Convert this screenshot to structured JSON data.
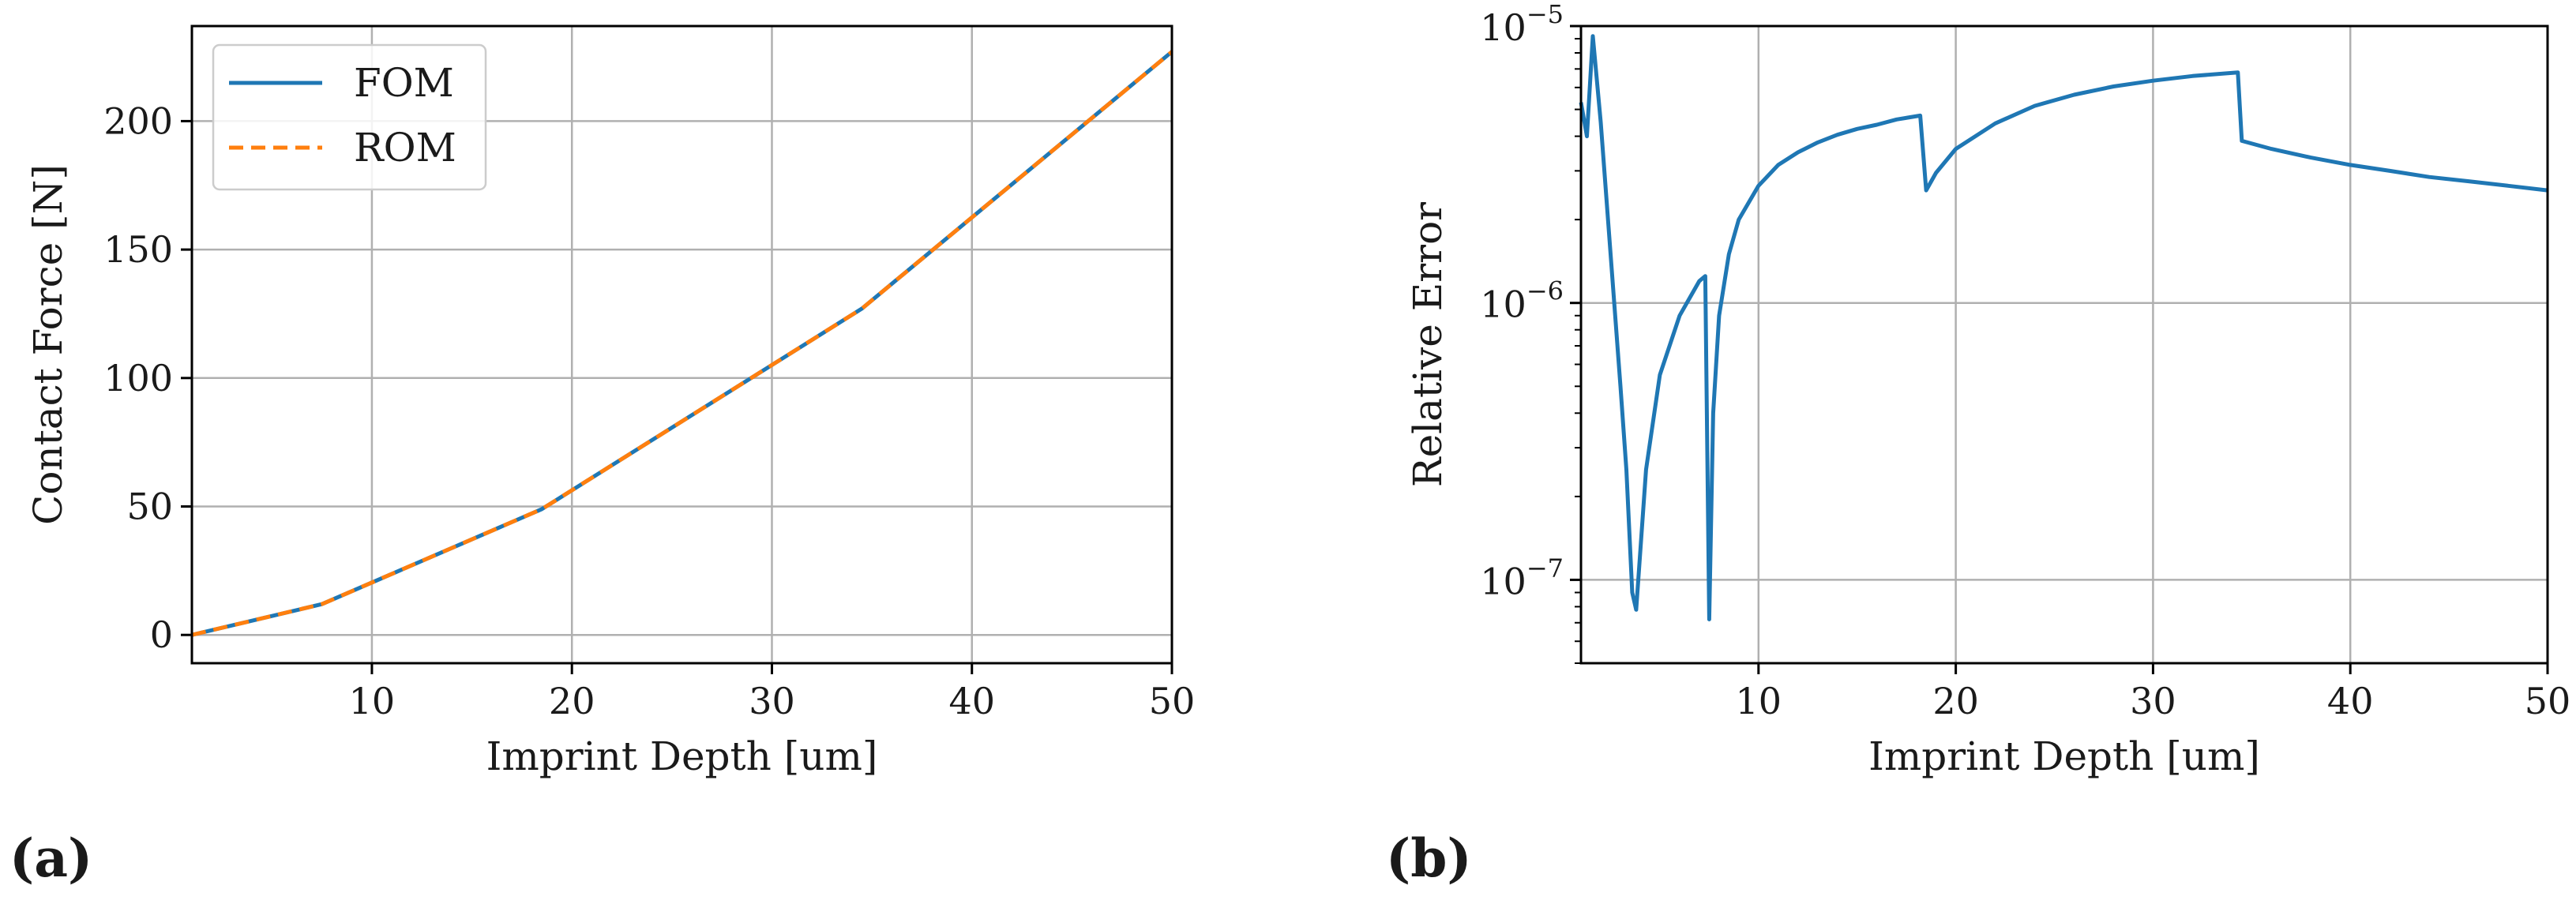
{
  "chart_data": [
    {
      "type": "line",
      "panel_label": "(a)",
      "title": "",
      "xlabel": "Imprint Depth [um]",
      "ylabel": "Contact Force [N]",
      "xlim": [
        1,
        50
      ],
      "ylim": [
        -11,
        237
      ],
      "xticks": [
        10,
        20,
        30,
        40,
        50
      ],
      "yticks": [
        0,
        50,
        100,
        150,
        200
      ],
      "grid": true,
      "legend_position": "top-left",
      "series": [
        {
          "name": "FOM",
          "color": "#1f77b4",
          "style": "solid",
          "x": [
            1,
            7.5,
            18.5,
            34.5,
            50
          ],
          "y": [
            0,
            12,
            49,
            127,
            227
          ]
        },
        {
          "name": "ROM",
          "color": "#ff7f0e",
          "style": "dashed",
          "x": [
            1,
            7.5,
            18.5,
            34.5,
            50
          ],
          "y": [
            0,
            12,
            49,
            127,
            227
          ]
        }
      ]
    },
    {
      "type": "line",
      "panel_label": "(b)",
      "title": "",
      "xlabel": "Imprint Depth [um]",
      "ylabel": "Relative Error",
      "yscale": "log",
      "xlim": [
        1,
        50
      ],
      "ylim": [
        5e-08,
        1e-05
      ],
      "xticks": [
        10,
        20,
        30,
        40,
        50
      ],
      "yticks": [
        1e-07,
        1e-06,
        1e-05
      ],
      "ytick_labels": [
        {
          "base": "10",
          "exp": "−7"
        },
        {
          "base": "10",
          "exp": "−6"
        },
        {
          "base": "10",
          "exp": "−5"
        }
      ],
      "grid": true,
      "series": [
        {
          "name": "Relative Error",
          "color": "#1f77b4",
          "x": [
            1.0,
            1.3,
            1.6,
            2.0,
            2.5,
            3.0,
            3.3,
            3.6,
            3.8,
            4.3,
            5.0,
            6.0,
            7.0,
            7.3,
            7.5,
            7.7,
            8.0,
            8.5,
            9.0,
            10,
            11,
            12,
            13,
            14,
            15,
            16,
            17,
            18.2,
            18.5,
            19,
            20,
            22,
            24,
            26,
            28,
            30,
            32,
            34.3,
            34.5,
            36,
            38,
            40,
            42,
            44,
            46,
            48,
            50
          ],
          "y": [
            5.3e-06,
            4e-06,
            9.2e-06,
            4.5e-06,
            1.5e-06,
            5e-07,
            2.5e-07,
            9e-08,
            7.8e-08,
            2.5e-07,
            5.5e-07,
            9e-07,
            1.2e-06,
            1.25e-06,
            7.2e-08,
            4e-07,
            9e-07,
            1.5e-06,
            2e-06,
            2.65e-06,
            3.15e-06,
            3.5e-06,
            3.8e-06,
            4.05e-06,
            4.25e-06,
            4.4e-06,
            4.6e-06,
            4.75e-06,
            2.55e-06,
            2.95e-06,
            3.6e-06,
            4.45e-06,
            5.15e-06,
            5.65e-06,
            6.05e-06,
            6.35e-06,
            6.6e-06,
            6.8e-06,
            3.85e-06,
            3.6e-06,
            3.35e-06,
            3.15e-06,
            3e-06,
            2.85e-06,
            2.75e-06,
            2.65e-06,
            2.55e-06
          ]
        }
      ]
    }
  ]
}
